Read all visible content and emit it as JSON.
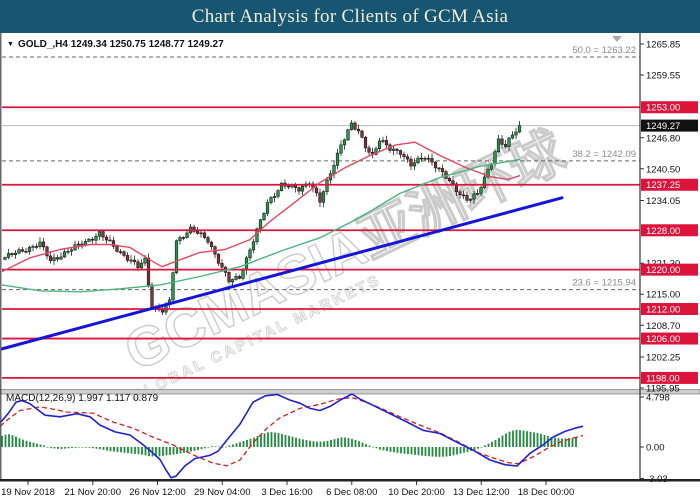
{
  "title_bar": {
    "title": "Chart Analysis for Clients of GCM Asia",
    "bg": "#175670",
    "fg": "#F2ECDA"
  },
  "chart": {
    "header_line": "GOLD_,H4  1249.34 1250.75 1248.77 1249.27",
    "macd_header": "MACD(12,26,9) 1.997 1.117 0.879"
  },
  "chart_data": {
    "type": "candlestick",
    "symbol": "GOLD_",
    "timeframe": "H4",
    "ohlc": {
      "open": 1249.34,
      "high": 1250.75,
      "low": 1248.77,
      "close": 1249.27
    },
    "current_price": 1249.27,
    "y_ticks": [
      1265.85,
      1259.55,
      1246.8,
      1240.5,
      1234.05,
      1221.3,
      1215.0,
      1208.7,
      1202.25,
      1195.95
    ],
    "x_labels": [
      "19 Nov 2018",
      "21 Nov 20:00",
      "26 Nov 12:00",
      "29 Nov 04:00",
      "3 Dec 16:00",
      "6 Dec 08:00",
      "10 Dec 20:00",
      "13 Dec 12:00",
      "18 Dec 00:00"
    ],
    "horizontal_levels": [
      1253.0,
      1237.25,
      1228.0,
      1220.0,
      1212.0,
      1206.0,
      1198.0
    ],
    "fibonacci": [
      {
        "label": "50.0",
        "price": 1263.22,
        "text": "50.0 = 1263.22"
      },
      {
        "label": "38.2",
        "price": 1242.09,
        "text": "38.2 = 1242.09"
      },
      {
        "label": "23.6",
        "price": 1215.94,
        "text": "23.6 = 1215.94"
      }
    ],
    "trendline": {
      "x1": 2,
      "price1": 1203.9,
      "x2": 562,
      "price2": 1234.6
    },
    "close_keyframes": [
      [
        0,
        1222.5
      ],
      [
        10,
        1225.3
      ],
      [
        13,
        1221.8
      ],
      [
        27,
        1227.3
      ],
      [
        29,
        1226.0
      ],
      [
        38,
        1220.5
      ],
      [
        40,
        1222.0
      ],
      [
        42,
        1212.5
      ],
      [
        45,
        1211.6
      ],
      [
        47,
        1213.5
      ],
      [
        49,
        1225.8
      ],
      [
        53,
        1228.3
      ],
      [
        58,
        1226.0
      ],
      [
        64,
        1217.6
      ],
      [
        67,
        1218.5
      ],
      [
        75,
        1233.5
      ],
      [
        79,
        1237.3
      ],
      [
        84,
        1236.3
      ],
      [
        87,
        1238.0
      ],
      [
        90,
        1233.8
      ],
      [
        96,
        1245.5
      ],
      [
        99,
        1249.4
      ],
      [
        101,
        1248.0
      ],
      [
        103,
        1245.2
      ],
      [
        105,
        1243.2
      ],
      [
        107,
        1246.3
      ],
      [
        110,
        1244.5
      ],
      [
        113,
        1244.0
      ],
      [
        116,
        1241.2
      ],
      [
        120,
        1243.0
      ],
      [
        122,
        1242.0
      ],
      [
        129,
        1236.2
      ],
      [
        132,
        1234.3
      ],
      [
        135,
        1235.2
      ],
      [
        139,
        1242.0
      ],
      [
        141,
        1246.3
      ],
      [
        143,
        1245.0
      ],
      [
        145,
        1247.3
      ],
      [
        147,
        1249.27
      ]
    ],
    "candle_count": 148,
    "candle_noise": {
      "wiggle1": 0.38,
      "wiggle2": 0.22,
      "wick_min": 0.15,
      "wick_rand": 0.85
    },
    "ma_fast_red": [
      [
        2,
        1219.6
      ],
      [
        30,
        1222.4
      ],
      [
        60,
        1224.1
      ],
      [
        90,
        1225.1
      ],
      [
        110,
        1225.1
      ],
      [
        130,
        1224.5
      ],
      [
        150,
        1222.0
      ],
      [
        162,
        1220.6
      ],
      [
        180,
        1222.0
      ],
      [
        200,
        1223.5
      ],
      [
        225,
        1224.1
      ],
      [
        250,
        1226.1
      ],
      [
        270,
        1229.8
      ],
      [
        295,
        1233.7
      ],
      [
        320,
        1237.7
      ],
      [
        345,
        1240.7
      ],
      [
        370,
        1243.2
      ],
      [
        395,
        1245.3
      ],
      [
        415,
        1245.9
      ],
      [
        440,
        1243.2
      ],
      [
        465,
        1240.8
      ],
      [
        490,
        1238.9
      ],
      [
        508,
        1238.3
      ],
      [
        520,
        1239.1
      ]
    ],
    "ma_slow_green": [
      [
        2,
        1216.9
      ],
      [
        40,
        1215.7
      ],
      [
        80,
        1215.5
      ],
      [
        120,
        1216.1
      ],
      [
        160,
        1216.9
      ],
      [
        200,
        1218.6
      ],
      [
        240,
        1220.6
      ],
      [
        280,
        1223.7
      ],
      [
        320,
        1226.5
      ],
      [
        360,
        1230.6
      ],
      [
        400,
        1235.5
      ],
      [
        440,
        1238.7
      ],
      [
        480,
        1241.0
      ],
      [
        520,
        1242.4
      ]
    ],
    "macd": {
      "label": "MACD(12,26,9)",
      "values": [
        1.997,
        1.117,
        0.879
      ],
      "scale_ticks": [
        4.798,
        0.0,
        -3.03
      ],
      "macd_line": [
        [
          0,
          2.3
        ],
        [
          8,
          3.2
        ],
        [
          16,
          4.3
        ],
        [
          22,
          4.45
        ],
        [
          30,
          4.15
        ],
        [
          45,
          3.05
        ],
        [
          60,
          2.9
        ],
        [
          77,
          3.2
        ],
        [
          90,
          2.9
        ],
        [
          100,
          2.1
        ],
        [
          115,
          1.45
        ],
        [
          130,
          1.15
        ],
        [
          142,
          0.3
        ],
        [
          152,
          -0.5
        ],
        [
          160,
          -1.2
        ],
        [
          166,
          -2.2
        ],
        [
          171,
          -2.95
        ],
        [
          176,
          -2.8
        ],
        [
          185,
          -1.8
        ],
        [
          195,
          -1.1
        ],
        [
          203,
          -0.95
        ],
        [
          210,
          -0.8
        ],
        [
          218,
          -0.4
        ],
        [
          228,
          0.8
        ],
        [
          240,
          2.2
        ],
        [
          253,
          4.3
        ],
        [
          265,
          4.9
        ],
        [
          277,
          5.05
        ],
        [
          290,
          4.5
        ],
        [
          300,
          4.2
        ],
        [
          310,
          3.7
        ],
        [
          320,
          3.5
        ],
        [
          330,
          3.9
        ],
        [
          342,
          4.6
        ],
        [
          352,
          5.1
        ],
        [
          360,
          4.6
        ],
        [
          373,
          4.0
        ],
        [
          390,
          3.2
        ],
        [
          407,
          2.4
        ],
        [
          423,
          1.6
        ],
        [
          440,
          1.3
        ],
        [
          457,
          0.45
        ],
        [
          473,
          -0.3
        ],
        [
          490,
          -1.25
        ],
        [
          505,
          -1.7
        ],
        [
          517,
          -1.82
        ],
        [
          530,
          -0.6
        ],
        [
          543,
          0.2
        ],
        [
          553,
          0.95
        ],
        [
          565,
          1.5
        ],
        [
          575,
          1.8
        ],
        [
          583,
          2.0
        ]
      ],
      "signal_line": [
        [
          0,
          2.0
        ],
        [
          10,
          2.8
        ],
        [
          20,
          3.5
        ],
        [
          40,
          3.85
        ],
        [
          55,
          3.6
        ],
        [
          67,
          3.35
        ],
        [
          80,
          3.3
        ],
        [
          93,
          3.25
        ],
        [
          113,
          2.4
        ],
        [
          133,
          1.8
        ],
        [
          153,
          0.95
        ],
        [
          173,
          0.2
        ],
        [
          193,
          -0.75
        ],
        [
          213,
          -1.55
        ],
        [
          227,
          -1.8
        ],
        [
          240,
          -1.25
        ],
        [
          253,
          0.4
        ],
        [
          267,
          1.8
        ],
        [
          280,
          2.8
        ],
        [
          300,
          3.7
        ],
        [
          320,
          4.1
        ],
        [
          338,
          4.6
        ],
        [
          352,
          4.75
        ],
        [
          366,
          4.3
        ],
        [
          380,
          3.75
        ],
        [
          400,
          2.9
        ],
        [
          420,
          2.1
        ],
        [
          440,
          1.35
        ],
        [
          460,
          0.4
        ],
        [
          477,
          -0.5
        ],
        [
          493,
          -1.05
        ],
        [
          508,
          -1.5
        ],
        [
          518,
          -1.6
        ],
        [
          533,
          -0.95
        ],
        [
          548,
          -0.1
        ],
        [
          562,
          0.55
        ],
        [
          575,
          0.9
        ],
        [
          583,
          1.1
        ]
      ],
      "histogram_keyframes": [
        [
          0,
          1.0
        ],
        [
          8,
          1.25
        ],
        [
          14,
          1.1
        ],
        [
          20,
          0.8
        ],
        [
          28,
          0.55
        ],
        [
          36,
          0.35
        ],
        [
          44,
          0.15
        ],
        [
          50,
          -0.1
        ],
        [
          60,
          -0.2
        ],
        [
          70,
          -0.12
        ],
        [
          80,
          -0.05
        ],
        [
          90,
          -0.08
        ],
        [
          100,
          -0.2
        ],
        [
          110,
          -0.4
        ],
        [
          120,
          -0.5
        ],
        [
          130,
          -0.62
        ],
        [
          140,
          -0.7
        ],
        [
          150,
          -0.9
        ],
        [
          158,
          -0.92
        ],
        [
          166,
          -0.8
        ],
        [
          174,
          -0.72
        ],
        [
          182,
          -0.6
        ],
        [
          190,
          -0.45
        ],
        [
          198,
          -0.3
        ],
        [
          206,
          -0.1
        ],
        [
          212,
          0.08
        ],
        [
          218,
          0.05
        ],
        [
          224,
          -0.05
        ],
        [
          230,
          0.15
        ],
        [
          238,
          0.4
        ],
        [
          246,
          0.65
        ],
        [
          254,
          0.9
        ],
        [
          262,
          1.25
        ],
        [
          270,
          1.45
        ],
        [
          278,
          1.35
        ],
        [
          286,
          1.15
        ],
        [
          294,
          0.95
        ],
        [
          302,
          0.75
        ],
        [
          310,
          0.6
        ],
        [
          318,
          0.5
        ],
        [
          326,
          0.55
        ],
        [
          334,
          0.75
        ],
        [
          342,
          0.95
        ],
        [
          350,
          0.85
        ],
        [
          358,
          0.6
        ],
        [
          365,
          0.3
        ],
        [
          372,
          0.05
        ],
        [
          380,
          -0.25
        ],
        [
          390,
          -0.45
        ],
        [
          400,
          -0.6
        ],
        [
          410,
          -0.7
        ],
        [
          420,
          -0.8
        ],
        [
          430,
          -0.9
        ],
        [
          440,
          -0.95
        ],
        [
          448,
          -0.9
        ],
        [
          456,
          -0.75
        ],
        [
          464,
          -0.55
        ],
        [
          472,
          -0.35
        ],
        [
          480,
          -0.1
        ],
        [
          486,
          0.2
        ],
        [
          492,
          0.5
        ],
        [
          498,
          0.8
        ],
        [
          504,
          1.2
        ],
        [
          510,
          1.5
        ],
        [
          516,
          1.65
        ],
        [
          522,
          1.6
        ],
        [
          528,
          1.5
        ],
        [
          534,
          1.4
        ],
        [
          540,
          1.3
        ],
        [
          546,
          1.1
        ],
        [
          552,
          0.95
        ],
        [
          558,
          0.85
        ],
        [
          564,
          0.8
        ],
        [
          570,
          0.85
        ],
        [
          576,
          0.9
        ]
      ]
    },
    "watermark": {
      "line1": "GCMASIA亚洲环球",
      "line2": "GLOBAL CAPITAL MARKETS"
    },
    "colors": {
      "bull": "#219A47",
      "bear": "#833038",
      "wick": "#222222",
      "level_red": "#DC143C",
      "badge_black": "#111111",
      "fib_line": "#666666",
      "fib_text": "#8a8a8a",
      "ma_fast": "#E14860",
      "ma_slow": "#4DB380",
      "trend_blue": "#1515D9",
      "macd_blue": "#2222CC",
      "macd_signal": "#CC2222",
      "macd_hist": "#1E8C3C",
      "bid_line": "#B8B8B8"
    }
  }
}
